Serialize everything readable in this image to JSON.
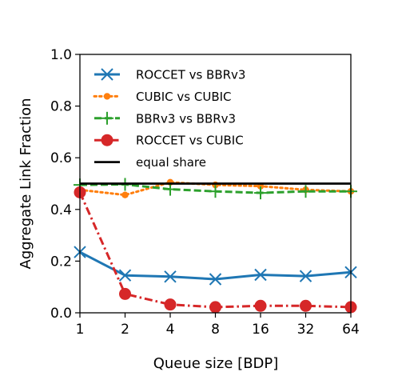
{
  "chart_data": {
    "type": "line",
    "xlabel": "Queue size [BDP]",
    "ylabel": "Aggregate Link Fraction",
    "x_tick_labels": [
      "1",
      "2",
      "4",
      "8",
      "16",
      "32",
      "64"
    ],
    "x": [
      1,
      2,
      4,
      8,
      16,
      32,
      64
    ],
    "x_scale": "log2",
    "ylim": [
      0.0,
      1.0
    ],
    "y_tick_labels": [
      "0.0",
      "0.2",
      "0.4",
      "0.6",
      "0.8",
      "1.0"
    ],
    "grid": false,
    "legend_position": "upper-left",
    "series": [
      {
        "name": "ROCCET vs BBRv3",
        "color": "#1f77b4",
        "marker": "x",
        "linestyle": "solid",
        "values": [
          0.235,
          0.145,
          0.14,
          0.13,
          0.147,
          0.142,
          0.157
        ]
      },
      {
        "name": "CUBIC vs CUBIC",
        "color": "#ff7f0e",
        "marker": "dot",
        "linestyle": "dotted",
        "values": [
          0.476,
          0.456,
          0.505,
          0.495,
          0.49,
          0.476,
          0.47
        ]
      },
      {
        "name": "BBRv3 vs BBRv3",
        "color": "#2ca02c",
        "marker": "plus",
        "linestyle": "dashed",
        "values": [
          0.495,
          0.497,
          0.478,
          0.47,
          0.464,
          0.47,
          0.47
        ]
      },
      {
        "name": "ROCCET vs CUBIC",
        "color": "#d62728",
        "marker": "circle",
        "linestyle": "dashdot",
        "values": [
          0.466,
          0.073,
          0.032,
          0.022,
          0.027,
          0.027,
          0.022
        ]
      }
    ],
    "reference_lines": [
      {
        "name": "equal share",
        "y": 0.5,
        "color": "#000000"
      }
    ]
  }
}
